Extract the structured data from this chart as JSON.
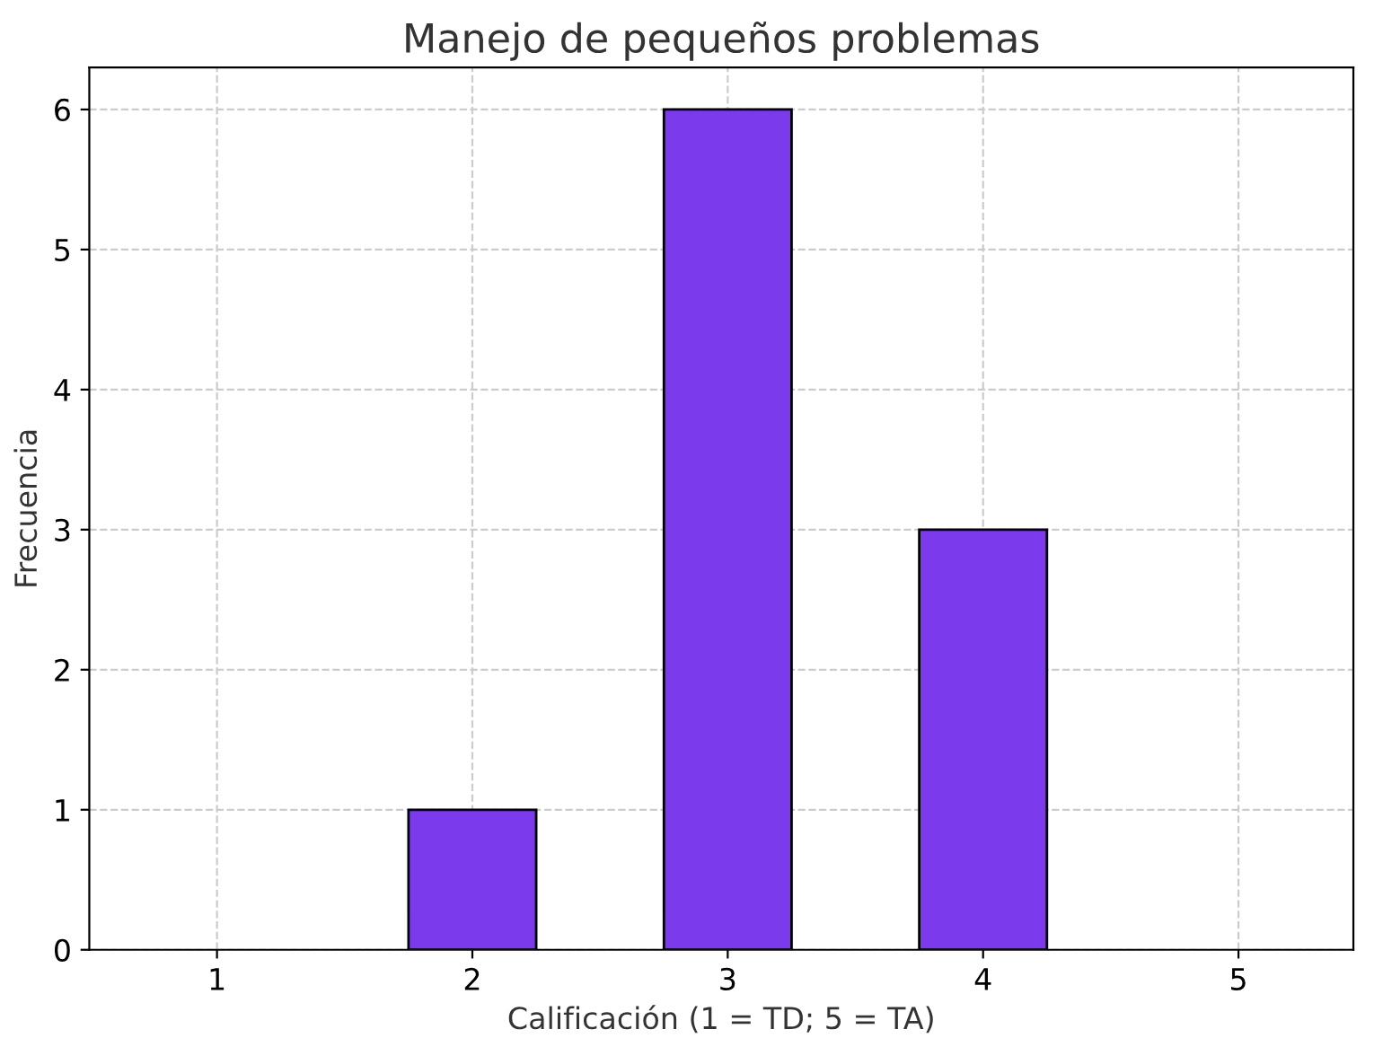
{
  "chart_data": {
    "type": "bar",
    "title": "Manejo de pequeños problemas",
    "xlabel": "Calificación (1 = TD; 5 = TA)",
    "ylabel": "Frecuencia",
    "categories": [
      "1",
      "2",
      "3",
      "4",
      "5"
    ],
    "values": [
      0,
      1,
      6,
      3,
      0
    ],
    "color": "#7c3aed",
    "ylim": [
      0,
      6.3
    ],
    "yticks": [
      0,
      1,
      2,
      3,
      4,
      5,
      6
    ],
    "grid": true,
    "legend": false
  }
}
